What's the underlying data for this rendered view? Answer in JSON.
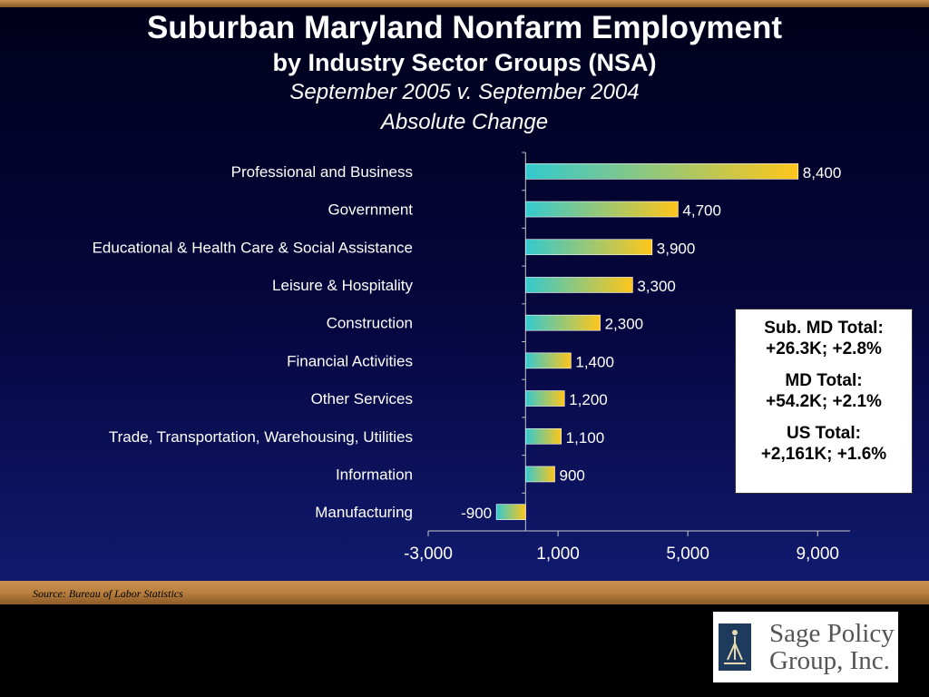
{
  "title": {
    "line1": "Suburban Maryland Nonfarm Employment",
    "line2": "by Industry Sector Groups (NSA)",
    "line3": "September 2005 v. September 2004",
    "line4": "Absolute Change"
  },
  "chart_data": {
    "type": "bar",
    "orientation": "horizontal",
    "categories": [
      "Professional and Business",
      "Government",
      "Educational & Health Care & Social Assistance",
      "Leisure & Hospitality",
      "Construction",
      "Financial Activities",
      "Other Services",
      "Trade, Transportation, Warehousing, Utilities",
      "Information",
      "Manufacturing"
    ],
    "values": [
      8400,
      4700,
      3900,
      3300,
      2300,
      1400,
      1200,
      1100,
      900,
      -900
    ],
    "data_labels": [
      "8,400",
      "4,700",
      "3,900",
      "3,300",
      "2,300",
      "1,400",
      "1,200",
      "1,100",
      "900",
      "-900"
    ],
    "x_ticks": [
      -3000,
      1000,
      5000,
      9000
    ],
    "x_tick_labels": [
      "-3,000",
      "1,000",
      "5,000",
      "9,000"
    ],
    "xlim": [
      -3000,
      10000
    ],
    "grid": false,
    "colors": {
      "bar_start": "#33c9cf",
      "bar_end": "#ffc61a"
    }
  },
  "totals": {
    "sub_md_label": "Sub. MD Total:",
    "sub_md_value": "+26.3K; +2.8%",
    "md_label": "MD Total:",
    "md_value": "+54.2K; +2.1%",
    "us_label": "US Total:",
    "us_value": "+2,161K; +1.6%"
  },
  "source": "Source:  Bureau of Labor Statistics",
  "logo": {
    "line1": "Sage Policy",
    "line2": "Group, Inc."
  }
}
